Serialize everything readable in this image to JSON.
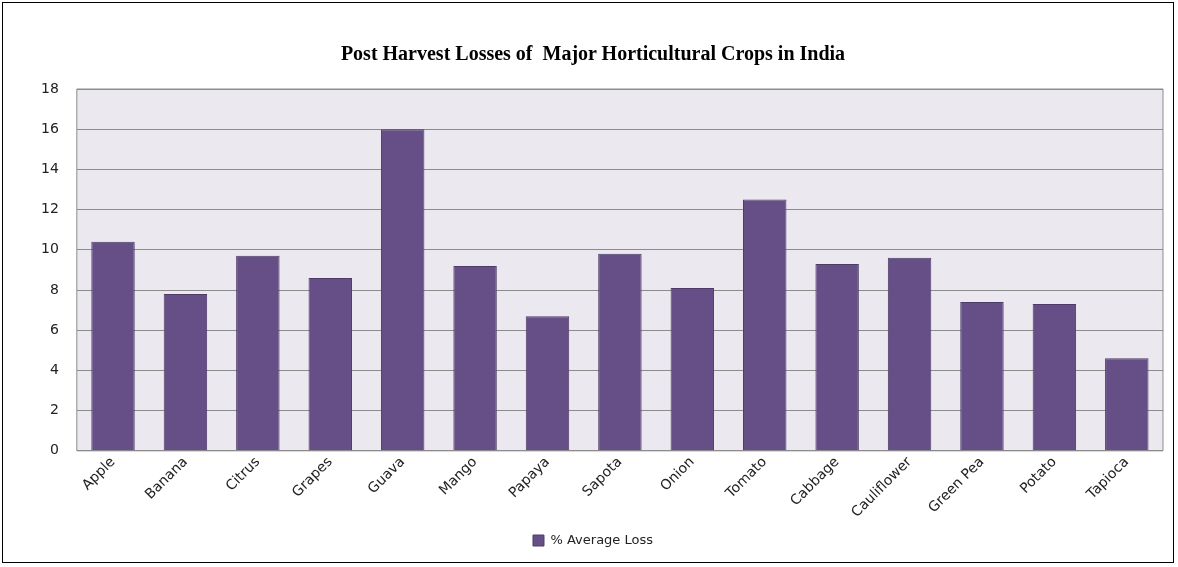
{
  "chart_data": {
    "type": "bar",
    "title": "Post Harvest Losses of  Major Horticultural Crops in India",
    "categories": [
      "Apple",
      "Banana",
      "Citrus",
      "Grapes",
      "Guava",
      "Mango",
      "Papaya",
      "Sapota",
      "Onion",
      "Tomato",
      "Cabbage",
      "Cauliflower",
      "Green Pea",
      "Potato",
      "Tapioca"
    ],
    "series": [
      {
        "name": "% Average Loss",
        "color": "#664f86",
        "values": [
          10.4,
          7.8,
          9.7,
          8.6,
          16,
          9.2,
          6.7,
          9.8,
          8.1,
          12.5,
          9.3,
          9.6,
          7.4,
          7.3,
          4.6
        ]
      }
    ],
    "ylim": [
      0,
      18
    ],
    "yticks": [
      0,
      2,
      4,
      6,
      8,
      10,
      12,
      14,
      16,
      18
    ],
    "grid": "y",
    "legend": "bottom"
  }
}
